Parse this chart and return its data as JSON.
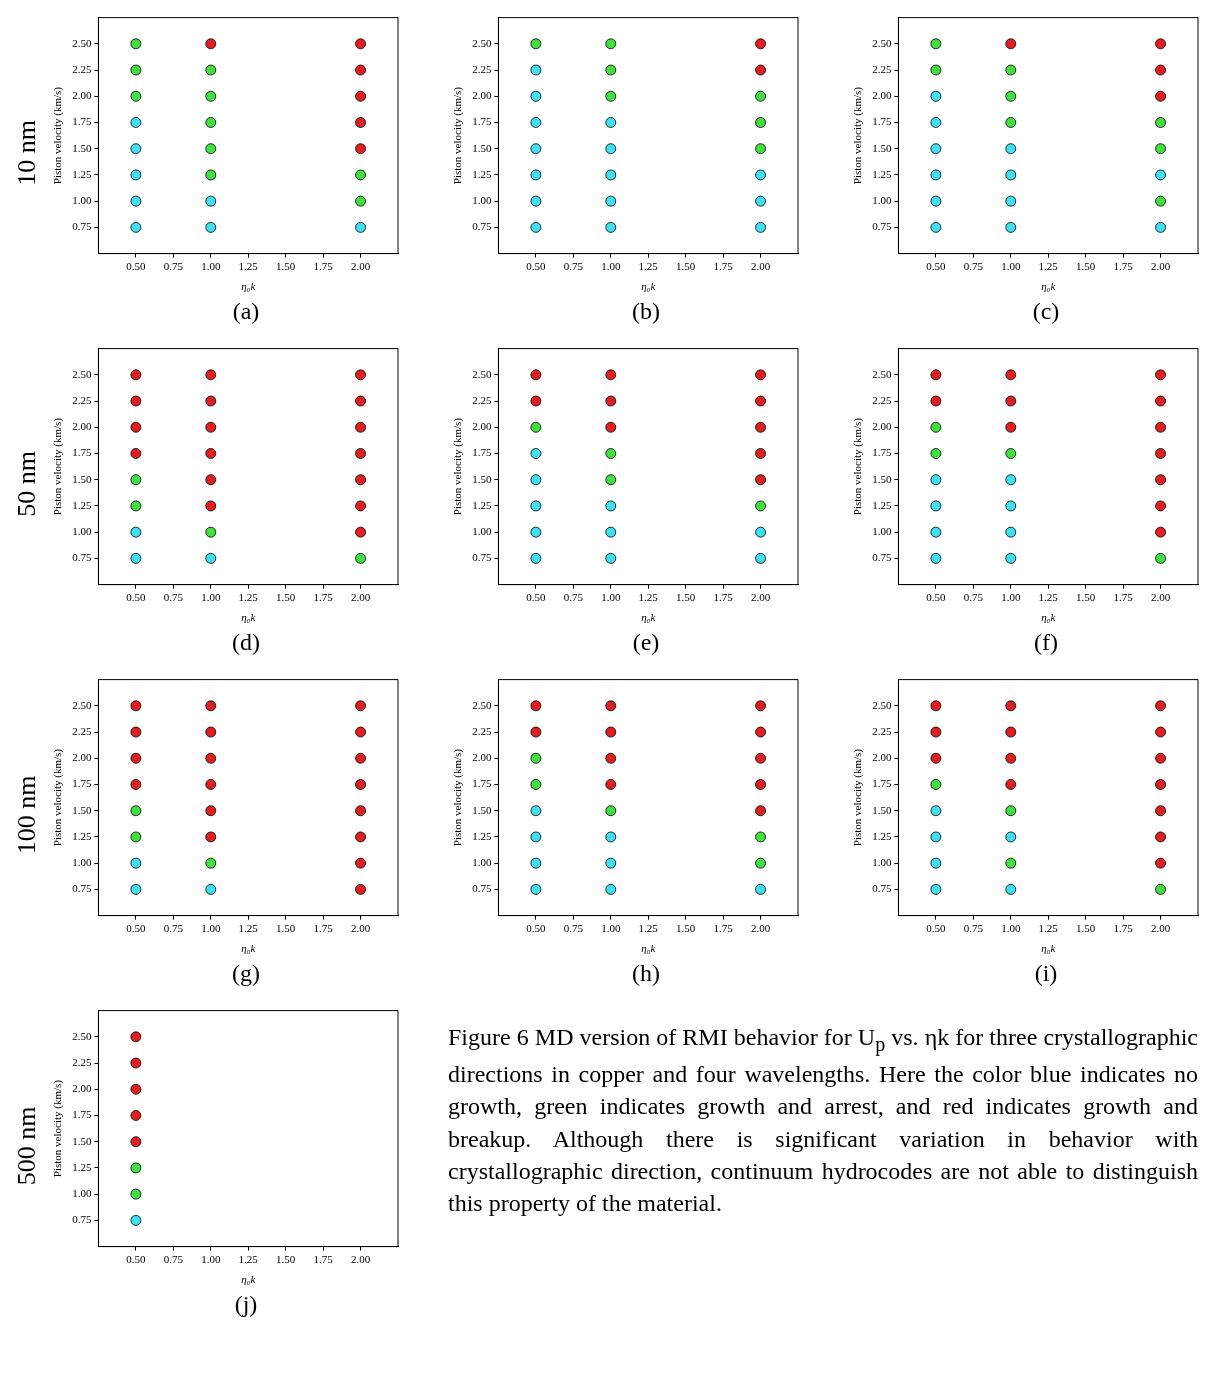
{
  "chart_data": [
    {
      "type": "scatter",
      "title": "(a)",
      "xlabel": "η₀k",
      "ylabel": "Piston velocity (km/s)",
      "annotations": [
        "10 nm"
      ],
      "marker": "circle",
      "xlim": [
        0.25,
        2.25
      ],
      "ylim": [
        0.5,
        2.75
      ],
      "xticks": [
        {
          "value": 0.5,
          "label": "0.50"
        },
        {
          "value": 0.75,
          "label": "0.75"
        },
        {
          "value": 1,
          "label": "1.00"
        },
        {
          "value": 1.25,
          "label": "1.25"
        },
        {
          "value": 1.5,
          "label": "1.50"
        },
        {
          "value": 1.75,
          "label": "1.75"
        },
        {
          "value": 2,
          "label": "2.00"
        }
      ],
      "yticks": [
        {
          "value": 0.75,
          "label": "0.75"
        },
        {
          "value": 1,
          "label": "1.00"
        },
        {
          "value": 1.25,
          "label": "1.25"
        },
        {
          "value": 1.5,
          "label": "1.50"
        },
        {
          "value": 1.75,
          "label": "1.75"
        },
        {
          "value": 2,
          "label": "2.00"
        },
        {
          "value": 2.25,
          "label": "2.25"
        },
        {
          "value": 2.5,
          "label": "2.50"
        }
      ],
      "x": [
        0.5,
        0.5,
        0.5,
        0.5,
        0.5,
        0.5,
        0.5,
        0.5,
        1,
        1,
        1,
        1,
        1,
        1,
        1,
        1,
        2,
        2,
        2,
        2,
        2,
        2,
        2,
        2
      ],
      "values": [
        2.5,
        2.25,
        2,
        1.75,
        1.5,
        1.25,
        1,
        0.75,
        2.5,
        2.25,
        2,
        1.75,
        1.5,
        1.25,
        1,
        0.75,
        2.5,
        2.25,
        2,
        1.75,
        1.5,
        1.25,
        1,
        0.75
      ],
      "colors": [
        "#40e040",
        "#40e040",
        "#40e040",
        "#40e0f0",
        "#40e0f0",
        "#40e0f0",
        "#40e0f0",
        "#40e0f0",
        "#e02020",
        "#40e040",
        "#40e040",
        "#40e040",
        "#40e040",
        "#40e040",
        "#40e0f0",
        "#40e0f0",
        "#e02020",
        "#e02020",
        "#e02020",
        "#e02020",
        "#e02020",
        "#40e040",
        "#40e040",
        "#40e0f0"
      ]
    },
    {
      "type": "scatter",
      "title": "(b)",
      "xlabel": "η₀k",
      "ylabel": "Piston velocity (km/s)",
      "marker": "circle",
      "xlim": [
        0.25,
        2.25
      ],
      "ylim": [
        0.5,
        2.75
      ],
      "xticks": [
        {
          "value": 0.5,
          "label": "0.50"
        },
        {
          "value": 0.75,
          "label": "0.75"
        },
        {
          "value": 1,
          "label": "1.00"
        },
        {
          "value": 1.25,
          "label": "1.25"
        },
        {
          "value": 1.5,
          "label": "1.50"
        },
        {
          "value": 1.75,
          "label": "1.75"
        },
        {
          "value": 2,
          "label": "2.00"
        }
      ],
      "yticks": [
        {
          "value": 0.75,
          "label": "0.75"
        },
        {
          "value": 1,
          "label": "1.00"
        },
        {
          "value": 1.25,
          "label": "1.25"
        },
        {
          "value": 1.5,
          "label": "1.50"
        },
        {
          "value": 1.75,
          "label": "1.75"
        },
        {
          "value": 2,
          "label": "2.00"
        },
        {
          "value": 2.25,
          "label": "2.25"
        },
        {
          "value": 2.5,
          "label": "2.50"
        }
      ],
      "x": [
        0.5,
        0.5,
        0.5,
        0.5,
        0.5,
        0.5,
        0.5,
        0.5,
        1,
        1,
        1,
        1,
        1,
        1,
        1,
        1,
        2,
        2,
        2,
        2,
        2,
        2,
        2,
        2
      ],
      "values": [
        2.5,
        2.25,
        2,
        1.75,
        1.5,
        1.25,
        1,
        0.75,
        2.5,
        2.25,
        2,
        1.75,
        1.5,
        1.25,
        1,
        0.75,
        2.5,
        2.25,
        2,
        1.75,
        1.5,
        1.25,
        1,
        0.75
      ],
      "colors": [
        "#40e040",
        "#40e0f0",
        "#40e0f0",
        "#40e0f0",
        "#40e0f0",
        "#40e0f0",
        "#40e0f0",
        "#40e0f0",
        "#40e040",
        "#40e040",
        "#40e040",
        "#40e0f0",
        "#40e0f0",
        "#40e0f0",
        "#40e0f0",
        "#40e0f0",
        "#e02020",
        "#e02020",
        "#40e040",
        "#40e040",
        "#40e040",
        "#40e0f0",
        "#40e0f0",
        "#40e0f0"
      ]
    },
    {
      "type": "scatter",
      "title": "(c)",
      "xlabel": "η₀k",
      "ylabel": "Piston velocity (km/s)",
      "marker": "circle",
      "xlim": [
        0.25,
        2.25
      ],
      "ylim": [
        0.5,
        2.75
      ],
      "xticks": [
        {
          "value": 0.5,
          "label": "0.50"
        },
        {
          "value": 0.75,
          "label": "0.75"
        },
        {
          "value": 1,
          "label": "1.00"
        },
        {
          "value": 1.25,
          "label": "1.25"
        },
        {
          "value": 1.5,
          "label": "1.50"
        },
        {
          "value": 1.75,
          "label": "1.75"
        },
        {
          "value": 2,
          "label": "2.00"
        }
      ],
      "yticks": [
        {
          "value": 0.75,
          "label": "0.75"
        },
        {
          "value": 1,
          "label": "1.00"
        },
        {
          "value": 1.25,
          "label": "1.25"
        },
        {
          "value": 1.5,
          "label": "1.50"
        },
        {
          "value": 1.75,
          "label": "1.75"
        },
        {
          "value": 2,
          "label": "2.00"
        },
        {
          "value": 2.25,
          "label": "2.25"
        },
        {
          "value": 2.5,
          "label": "2.50"
        }
      ],
      "x": [
        0.5,
        0.5,
        0.5,
        0.5,
        0.5,
        0.5,
        0.5,
        0.5,
        1,
        1,
        1,
        1,
        1,
        1,
        1,
        1,
        2,
        2,
        2,
        2,
        2,
        2,
        2,
        2
      ],
      "values": [
        2.5,
        2.25,
        2,
        1.75,
        1.5,
        1.25,
        1,
        0.75,
        2.5,
        2.25,
        2,
        1.75,
        1.5,
        1.25,
        1,
        0.75,
        2.5,
        2.25,
        2,
        1.75,
        1.5,
        1.25,
        1,
        0.75
      ],
      "colors": [
        "#40e040",
        "#40e040",
        "#40e0f0",
        "#40e0f0",
        "#40e0f0",
        "#40e0f0",
        "#40e0f0",
        "#40e0f0",
        "#e02020",
        "#40e040",
        "#40e040",
        "#40e040",
        "#40e0f0",
        "#40e0f0",
        "#40e0f0",
        "#40e0f0",
        "#e02020",
        "#e02020",
        "#e02020",
        "#40e040",
        "#40e040",
        "#40e0f0",
        "#40e040",
        "#40e0f0"
      ]
    },
    {
      "type": "scatter",
      "title": "(d)",
      "xlabel": "η₀k",
      "ylabel": "Piston velocity (km/s)",
      "annotations": [
        "50 nm"
      ],
      "marker": "circle",
      "xlim": [
        0.25,
        2.25
      ],
      "ylim": [
        0.5,
        2.75
      ],
      "xticks": [
        {
          "value": 0.5,
          "label": "0.50"
        },
        {
          "value": 0.75,
          "label": "0.75"
        },
        {
          "value": 1,
          "label": "1.00"
        },
        {
          "value": 1.25,
          "label": "1.25"
        },
        {
          "value": 1.5,
          "label": "1.50"
        },
        {
          "value": 1.75,
          "label": "1.75"
        },
        {
          "value": 2,
          "label": "2.00"
        }
      ],
      "yticks": [
        {
          "value": 0.75,
          "label": "0.75"
        },
        {
          "value": 1,
          "label": "1.00"
        },
        {
          "value": 1.25,
          "label": "1.25"
        },
        {
          "value": 1.5,
          "label": "1.50"
        },
        {
          "value": 1.75,
          "label": "1.75"
        },
        {
          "value": 2,
          "label": "2.00"
        },
        {
          "value": 2.25,
          "label": "2.25"
        },
        {
          "value": 2.5,
          "label": "2.50"
        }
      ],
      "x": [
        0.5,
        0.5,
        0.5,
        0.5,
        0.5,
        0.5,
        0.5,
        0.5,
        1,
        1,
        1,
        1,
        1,
        1,
        1,
        1,
        2,
        2,
        2,
        2,
        2,
        2,
        2,
        2
      ],
      "values": [
        2.5,
        2.25,
        2,
        1.75,
        1.5,
        1.25,
        1,
        0.75,
        2.5,
        2.25,
        2,
        1.75,
        1.5,
        1.25,
        1,
        0.75,
        2.5,
        2.25,
        2,
        1.75,
        1.5,
        1.25,
        1,
        0.75
      ],
      "colors": [
        "#e02020",
        "#e02020",
        "#e02020",
        "#e02020",
        "#40e040",
        "#40e040",
        "#40e0f0",
        "#40e0f0",
        "#e02020",
        "#e02020",
        "#e02020",
        "#e02020",
        "#e02020",
        "#e02020",
        "#40e040",
        "#40e0f0",
        "#e02020",
        "#e02020",
        "#e02020",
        "#e02020",
        "#e02020",
        "#e02020",
        "#e02020",
        "#40e040"
      ]
    },
    {
      "type": "scatter",
      "title": "(e)",
      "xlabel": "η₀k",
      "ylabel": "Piston velocity (km/s)",
      "marker": "circle",
      "xlim": [
        0.25,
        2.25
      ],
      "ylim": [
        0.5,
        2.75
      ],
      "xticks": [
        {
          "value": 0.5,
          "label": "0.50"
        },
        {
          "value": 0.75,
          "label": "0.75"
        },
        {
          "value": 1,
          "label": "1.00"
        },
        {
          "value": 1.25,
          "label": "1.25"
        },
        {
          "value": 1.5,
          "label": "1.50"
        },
        {
          "value": 1.75,
          "label": "1.75"
        },
        {
          "value": 2,
          "label": "2.00"
        }
      ],
      "yticks": [
        {
          "value": 0.75,
          "label": "0.75"
        },
        {
          "value": 1,
          "label": "1.00"
        },
        {
          "value": 1.25,
          "label": "1.25"
        },
        {
          "value": 1.5,
          "label": "1.50"
        },
        {
          "value": 1.75,
          "label": "1.75"
        },
        {
          "value": 2,
          "label": "2.00"
        },
        {
          "value": 2.25,
          "label": "2.25"
        },
        {
          "value": 2.5,
          "label": "2.50"
        }
      ],
      "x": [
        0.5,
        0.5,
        0.5,
        0.5,
        0.5,
        0.5,
        0.5,
        0.5,
        1,
        1,
        1,
        1,
        1,
        1,
        1,
        1,
        2,
        2,
        2,
        2,
        2,
        2,
        2,
        2
      ],
      "values": [
        2.5,
        2.25,
        2,
        1.75,
        1.5,
        1.25,
        1,
        0.75,
        2.5,
        2.25,
        2,
        1.75,
        1.5,
        1.25,
        1,
        0.75,
        2.5,
        2.25,
        2,
        1.75,
        1.5,
        1.25,
        1,
        0.75
      ],
      "colors": [
        "#e02020",
        "#e02020",
        "#40e040",
        "#40e0f0",
        "#40e0f0",
        "#40e0f0",
        "#40e0f0",
        "#40e0f0",
        "#e02020",
        "#e02020",
        "#e02020",
        "#40e040",
        "#40e040",
        "#40e0f0",
        "#40e0f0",
        "#40e0f0",
        "#e02020",
        "#e02020",
        "#e02020",
        "#e02020",
        "#e02020",
        "#40e040",
        "#40e0f0",
        "#40e0f0"
      ]
    },
    {
      "type": "scatter",
      "title": "(f)",
      "xlabel": "η₀k",
      "ylabel": "Piston velocity (km/s)",
      "marker": "circle",
      "xlim": [
        0.25,
        2.25
      ],
      "ylim": [
        0.5,
        2.75
      ],
      "xticks": [
        {
          "value": 0.5,
          "label": "0.50"
        },
        {
          "value": 0.75,
          "label": "0.75"
        },
        {
          "value": 1,
          "label": "1.00"
        },
        {
          "value": 1.25,
          "label": "1.25"
        },
        {
          "value": 1.5,
          "label": "1.50"
        },
        {
          "value": 1.75,
          "label": "1.75"
        },
        {
          "value": 2,
          "label": "2.00"
        }
      ],
      "yticks": [
        {
          "value": 0.75,
          "label": "0.75"
        },
        {
          "value": 1,
          "label": "1.00"
        },
        {
          "value": 1.25,
          "label": "1.25"
        },
        {
          "value": 1.5,
          "label": "1.50"
        },
        {
          "value": 1.75,
          "label": "1.75"
        },
        {
          "value": 2,
          "label": "2.00"
        },
        {
          "value": 2.25,
          "label": "2.25"
        },
        {
          "value": 2.5,
          "label": "2.50"
        }
      ],
      "x": [
        0.5,
        0.5,
        0.5,
        0.5,
        0.5,
        0.5,
        0.5,
        0.5,
        1,
        1,
        1,
        1,
        1,
        1,
        1,
        1,
        2,
        2,
        2,
        2,
        2,
        2,
        2,
        2
      ],
      "values": [
        2.5,
        2.25,
        2,
        1.75,
        1.5,
        1.25,
        1,
        0.75,
        2.5,
        2.25,
        2,
        1.75,
        1.5,
        1.25,
        1,
        0.75,
        2.5,
        2.25,
        2,
        1.75,
        1.5,
        1.25,
        1,
        0.75
      ],
      "colors": [
        "#e02020",
        "#e02020",
        "#40e040",
        "#40e040",
        "#40e0f0",
        "#40e0f0",
        "#40e0f0",
        "#40e0f0",
        "#e02020",
        "#e02020",
        "#e02020",
        "#40e040",
        "#40e0f0",
        "#40e0f0",
        "#40e0f0",
        "#40e0f0",
        "#e02020",
        "#e02020",
        "#e02020",
        "#e02020",
        "#e02020",
        "#e02020",
        "#e02020",
        "#40e040"
      ]
    },
    {
      "type": "scatter",
      "title": "(g)",
      "xlabel": "η₀k",
      "ylabel": "Piston velocity (km/s)",
      "annotations": [
        "100 nm"
      ],
      "marker": "circle",
      "xlim": [
        0.25,
        2.25
      ],
      "ylim": [
        0.5,
        2.75
      ],
      "xticks": [
        {
          "value": 0.5,
          "label": "0.50"
        },
        {
          "value": 0.75,
          "label": "0.75"
        },
        {
          "value": 1,
          "label": "1.00"
        },
        {
          "value": 1.25,
          "label": "1.25"
        },
        {
          "value": 1.5,
          "label": "1.50"
        },
        {
          "value": 1.75,
          "label": "1.75"
        },
        {
          "value": 2,
          "label": "2.00"
        }
      ],
      "yticks": [
        {
          "value": 0.75,
          "label": "0.75"
        },
        {
          "value": 1,
          "label": "1.00"
        },
        {
          "value": 1.25,
          "label": "1.25"
        },
        {
          "value": 1.5,
          "label": "1.50"
        },
        {
          "value": 1.75,
          "label": "1.75"
        },
        {
          "value": 2,
          "label": "2.00"
        },
        {
          "value": 2.25,
          "label": "2.25"
        },
        {
          "value": 2.5,
          "label": "2.50"
        }
      ],
      "x": [
        0.5,
        0.5,
        0.5,
        0.5,
        0.5,
        0.5,
        0.5,
        0.5,
        1,
        1,
        1,
        1,
        1,
        1,
        1,
        1,
        2,
        2,
        2,
        2,
        2,
        2,
        2,
        2
      ],
      "values": [
        2.5,
        2.25,
        2,
        1.75,
        1.5,
        1.25,
        1,
        0.75,
        2.5,
        2.25,
        2,
        1.75,
        1.5,
        1.25,
        1,
        0.75,
        2.5,
        2.25,
        2,
        1.75,
        1.5,
        1.25,
        1,
        0.75
      ],
      "colors": [
        "#e02020",
        "#e02020",
        "#e02020",
        "#e02020",
        "#40e040",
        "#40e040",
        "#40e0f0",
        "#40e0f0",
        "#e02020",
        "#e02020",
        "#e02020",
        "#e02020",
        "#e02020",
        "#e02020",
        "#40e040",
        "#40e0f0",
        "#e02020",
        "#e02020",
        "#e02020",
        "#e02020",
        "#e02020",
        "#e02020",
        "#e02020",
        "#e02020"
      ]
    },
    {
      "type": "scatter",
      "title": "(h)",
      "xlabel": "η₀k",
      "ylabel": "Piston velocity (km/s)",
      "marker": "circle",
      "xlim": [
        0.25,
        2.25
      ],
      "ylim": [
        0.5,
        2.75
      ],
      "xticks": [
        {
          "value": 0.5,
          "label": "0.50"
        },
        {
          "value": 0.75,
          "label": "0.75"
        },
        {
          "value": 1,
          "label": "1.00"
        },
        {
          "value": 1.25,
          "label": "1.25"
        },
        {
          "value": 1.5,
          "label": "1.50"
        },
        {
          "value": 1.75,
          "label": "1.75"
        },
        {
          "value": 2,
          "label": "2.00"
        }
      ],
      "yticks": [
        {
          "value": 0.75,
          "label": "0.75"
        },
        {
          "value": 1,
          "label": "1.00"
        },
        {
          "value": 1.25,
          "label": "1.25"
        },
        {
          "value": 1.5,
          "label": "1.50"
        },
        {
          "value": 1.75,
          "label": "1.75"
        },
        {
          "value": 2,
          "label": "2.00"
        },
        {
          "value": 2.25,
          "label": "2.25"
        },
        {
          "value": 2.5,
          "label": "2.50"
        }
      ],
      "x": [
        0.5,
        0.5,
        0.5,
        0.5,
        0.5,
        0.5,
        0.5,
        0.5,
        1,
        1,
        1,
        1,
        1,
        1,
        1,
        1,
        2,
        2,
        2,
        2,
        2,
        2,
        2,
        2
      ],
      "values": [
        2.5,
        2.25,
        2,
        1.75,
        1.5,
        1.25,
        1,
        0.75,
        2.5,
        2.25,
        2,
        1.75,
        1.5,
        1.25,
        1,
        0.75,
        2.5,
        2.25,
        2,
        1.75,
        1.5,
        1.25,
        1,
        0.75
      ],
      "colors": [
        "#e02020",
        "#e02020",
        "#40e040",
        "#40e040",
        "#40e0f0",
        "#40e0f0",
        "#40e0f0",
        "#40e0f0",
        "#e02020",
        "#e02020",
        "#e02020",
        "#e02020",
        "#40e040",
        "#40e0f0",
        "#40e0f0",
        "#40e0f0",
        "#e02020",
        "#e02020",
        "#e02020",
        "#e02020",
        "#e02020",
        "#40e040",
        "#40e040",
        "#40e0f0"
      ]
    },
    {
      "type": "scatter",
      "title": "(i)",
      "xlabel": "η₀k",
      "ylabel": "Piston velocity (km/s)",
      "marker": "circle",
      "xlim": [
        0.25,
        2.25
      ],
      "ylim": [
        0.5,
        2.75
      ],
      "xticks": [
        {
          "value": 0.5,
          "label": "0.50"
        },
        {
          "value": 0.75,
          "label": "0.75"
        },
        {
          "value": 1,
          "label": "1.00"
        },
        {
          "value": 1.25,
          "label": "1.25"
        },
        {
          "value": 1.5,
          "label": "1.50"
        },
        {
          "value": 1.75,
          "label": "1.75"
        },
        {
          "value": 2,
          "label": "2.00"
        }
      ],
      "yticks": [
        {
          "value": 0.75,
          "label": "0.75"
        },
        {
          "value": 1,
          "label": "1.00"
        },
        {
          "value": 1.25,
          "label": "1.25"
        },
        {
          "value": 1.5,
          "label": "1.50"
        },
        {
          "value": 1.75,
          "label": "1.75"
        },
        {
          "value": 2,
          "label": "2.00"
        },
        {
          "value": 2.25,
          "label": "2.25"
        },
        {
          "value": 2.5,
          "label": "2.50"
        }
      ],
      "x": [
        0.5,
        0.5,
        0.5,
        0.5,
        0.5,
        0.5,
        0.5,
        0.5,
        1,
        1,
        1,
        1,
        1,
        1,
        1,
        1,
        2,
        2,
        2,
        2,
        2,
        2,
        2,
        2
      ],
      "values": [
        2.5,
        2.25,
        2,
        1.75,
        1.5,
        1.25,
        1,
        0.75,
        2.5,
        2.25,
        2,
        1.75,
        1.5,
        1.25,
        1,
        0.75,
        2.5,
        2.25,
        2,
        1.75,
        1.5,
        1.25,
        1,
        0.75
      ],
      "colors": [
        "#e02020",
        "#e02020",
        "#e02020",
        "#40e040",
        "#40e0f0",
        "#40e0f0",
        "#40e0f0",
        "#40e0f0",
        "#e02020",
        "#e02020",
        "#e02020",
        "#e02020",
        "#40e040",
        "#40e0f0",
        "#40e040",
        "#40e0f0",
        "#e02020",
        "#e02020",
        "#e02020",
        "#e02020",
        "#e02020",
        "#e02020",
        "#e02020",
        "#40e040"
      ]
    },
    {
      "type": "scatter",
      "title": "(j)",
      "xlabel": "η₀k",
      "ylabel": "Piston velocity (km/s)",
      "annotations": [
        "500 nm"
      ],
      "marker": "circle",
      "xlim": [
        0.25,
        2.25
      ],
      "ylim": [
        0.5,
        2.75
      ],
      "xticks": [
        {
          "value": 0.5,
          "label": "0.50"
        },
        {
          "value": 0.75,
          "label": "0.75"
        },
        {
          "value": 1,
          "label": "1.00"
        },
        {
          "value": 1.25,
          "label": "1.25"
        },
        {
          "value": 1.5,
          "label": "1.50"
        },
        {
          "value": 1.75,
          "label": "1.75"
        },
        {
          "value": 2,
          "label": "2.00"
        }
      ],
      "yticks": [
        {
          "value": 0.75,
          "label": "0.75"
        },
        {
          "value": 1,
          "label": "1.00"
        },
        {
          "value": 1.25,
          "label": "1.25"
        },
        {
          "value": 1.5,
          "label": "1.50"
        },
        {
          "value": 1.75,
          "label": "1.75"
        },
        {
          "value": 2,
          "label": "2.00"
        },
        {
          "value": 2.25,
          "label": "2.25"
        },
        {
          "value": 2.5,
          "label": "2.50"
        }
      ],
      "x": [
        0.5,
        0.5,
        0.5,
        0.5,
        0.5,
        0.5,
        0.5,
        0.5
      ],
      "values": [
        2.5,
        2.25,
        2,
        1.75,
        1.5,
        1.25,
        1,
        0.75
      ],
      "colors": [
        "#e02020",
        "#e02020",
        "#e02020",
        "#e02020",
        "#e02020",
        "#40e040",
        "#40e040",
        "#40e0f0"
      ]
    },
    {
      "type": "other",
      "annotations": [
        "Figure 6 MD version of RMI behavior for U$_{p}$ vs. ηk for three crystallographic directions in copper and four wavelengths. Here the color blue indicates no growth, green indicates growth and arrest, and red indicates growth and breakup. Although there is significant variation in behavior with crystallographic direction, continuum hydrocodes are not able to distinguish this property of the material."
      ]
    }
  ]
}
